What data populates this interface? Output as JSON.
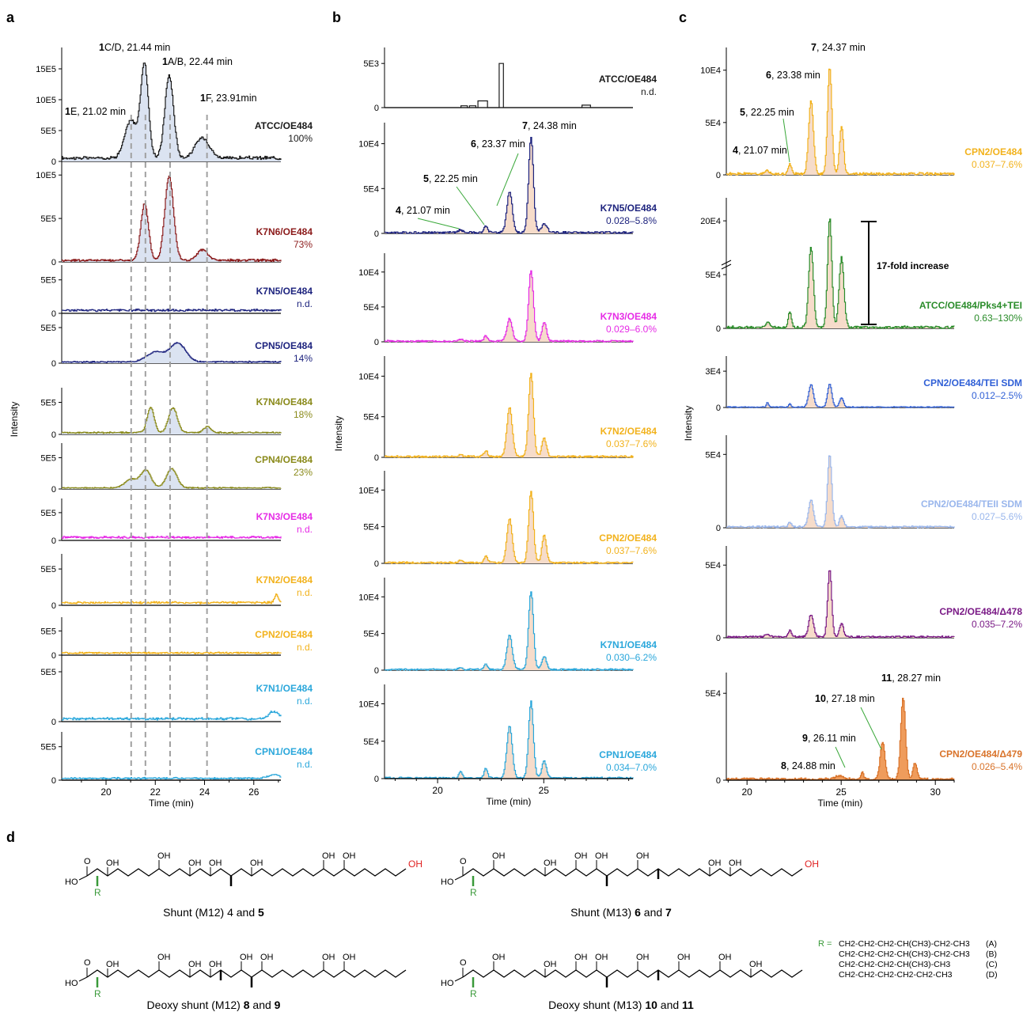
{
  "panel_labels": {
    "a": "a",
    "b": "b",
    "c": "c",
    "d": "d"
  },
  "axis": {
    "intensity": "Intensity",
    "time": "Time (min)",
    "a_ticks": [
      "20",
      "22",
      "24",
      "26"
    ],
    "b_ticks": [
      "20",
      "25"
    ],
    "c_ticks": [
      "20",
      "25",
      "30"
    ]
  },
  "colors": {
    "black": "#1a1a1a",
    "darkred": "#8b1a1a",
    "navy": "#1d237e",
    "olive": "#8a8a1a",
    "magenta": "#e62ce6",
    "gold": "#f2b21c",
    "cyan": "#2aa7db",
    "green": "#2a8c2a",
    "blue": "#2f5fd6",
    "lightblue": "#99b6ec",
    "purple": "#7a1a86",
    "orange": "#d9732a",
    "fill_blue": "#dbe3f1",
    "fill_peach": "#f6dcca",
    "fill_orange": "#ef9c5c",
    "fill_grey": "#707070"
  },
  "chart_data": [
    {
      "id": "a",
      "type": "line",
      "xlabel": "Time (min)",
      "ylabel": "Intensity",
      "xlim": [
        18.2,
        27.1
      ],
      "peak_labels": [
        {
          "bold": "1",
          "text": "C/D, 21.44 min"
        },
        {
          "bold": "1",
          "text": "A/B, 22.44 min"
        },
        {
          "bold": "1",
          "text": "E, 21.02 min"
        },
        {
          "bold": "1",
          "text": "F, 23.91min"
        }
      ],
      "traces": [
        {
          "name": "ATCC/OE484",
          "value": "100%",
          "color": "black",
          "ticks": [
            "15E5",
            "10E5",
            "5E5",
            "0"
          ],
          "ymax": 15,
          "peaks": [
            [
              21.0,
              5.5,
              0.35
            ],
            [
              21.55,
              13.5,
              0.22
            ],
            [
              22.55,
              12.0,
              0.25
            ],
            [
              23.9,
              3.0,
              0.4
            ]
          ],
          "base": 0.5
        },
        {
          "name": "K7N6/OE484",
          "value": "73%",
          "color": "darkred",
          "ticks": [
            "10E5",
            "5E5",
            "0"
          ],
          "ymax": 12,
          "peaks": [
            [
              21.55,
              7.0,
              0.22
            ],
            [
              22.55,
              10.5,
              0.25
            ],
            [
              23.9,
              1.3,
              0.3
            ]
          ],
          "base": 0.2
        },
        {
          "name": "K7N5/OE484",
          "value": "n.d.",
          "color": "navy",
          "ticks": [
            "5E5",
            "0"
          ],
          "ymax": 6,
          "peaks": [],
          "base": 0.5
        },
        {
          "name": "CPN5/OE484",
          "value": "14%",
          "color": "navy",
          "ticks": [
            "5E5",
            "0"
          ],
          "ymax": 6,
          "peaks": [
            [
              22.0,
              1.5,
              0.5
            ],
            [
              22.9,
              2.8,
              0.45
            ]
          ],
          "base": 0.2
        },
        {
          "name": "K7N4/OE484",
          "value": "18%",
          "color": "olive",
          "ticks": [
            "5E5",
            "0"
          ],
          "ymax": 6,
          "peaks": [
            [
              21.8,
              4.3,
              0.2
            ],
            [
              22.7,
              4.2,
              0.25
            ],
            [
              24.1,
              1.0,
              0.2
            ]
          ],
          "base": 0.3
        },
        {
          "name": "CPN4/OE484",
          "value": "23%",
          "color": "olive",
          "ticks": [
            "5E5",
            "0"
          ],
          "ymax": 6,
          "peaks": [
            [
              21.0,
              1.5,
              0.35
            ],
            [
              21.6,
              3.0,
              0.3
            ],
            [
              22.65,
              3.3,
              0.3
            ]
          ],
          "base": 0.2
        },
        {
          "name": "K7N3/OE484",
          "value": "n.d.",
          "color": "magenta",
          "ticks": [
            "5E5",
            "0"
          ],
          "ymax": 6,
          "peaks": [],
          "base": 0.6
        },
        {
          "name": "K7N2/OE484",
          "value": "n.d.",
          "color": "gold",
          "ticks": [
            "5E5",
            "0"
          ],
          "ymax": 6,
          "peaks": [
            [
              26.9,
              1.2,
              0.1
            ]
          ],
          "base": 0.4
        },
        {
          "name": "CPN2/OE484",
          "value": "n.d.",
          "color": "gold",
          "ticks": [
            "5E5",
            "0"
          ],
          "ymax": 6,
          "peaks": [],
          "base": 0.5
        },
        {
          "name": "K7N1/OE484",
          "value": "n.d.",
          "color": "cyan",
          "ticks": [
            "5E5",
            "0"
          ],
          "ymax": 6,
          "peaks": [
            [
              26.8,
              0.8,
              0.3
            ]
          ],
          "base": 0.3
        },
        {
          "name": "CPN1/OE484",
          "value": "n.d.",
          "color": "cyan",
          "ticks": [
            "5E5",
            "0"
          ],
          "ymax": 6,
          "peaks": [
            [
              26.8,
              0.6,
              0.3
            ]
          ],
          "base": 0.3
        }
      ]
    },
    {
      "id": "b",
      "type": "line",
      "xlabel": "Time (min)",
      "ylabel": "Intensity",
      "xlim": [
        17.5,
        29.2
      ],
      "peak_labels": [
        {
          "bold": "7",
          "text": ", 24.38 min"
        },
        {
          "bold": "6",
          "text": ", 23.37 min"
        },
        {
          "bold": "5",
          "text": ", 22.25 min"
        },
        {
          "bold": "4",
          "text": ", 21.07 min"
        }
      ],
      "traces": [
        {
          "name": "ATCC/OE484",
          "value": "n.d.",
          "color": "black",
          "ticks": [
            "5E3",
            "0"
          ],
          "ymax": 8,
          "peaks": [],
          "base": 0
        },
        {
          "name": "K7N5/OE484",
          "value": "0.028–5.8%",
          "color": "navy",
          "ticks": [
            "10E4",
            "5E4",
            "0"
          ],
          "ymax": 12,
          "peaks": [
            [
              21.07,
              0.4,
              0.12
            ],
            [
              22.25,
              0.8,
              0.12
            ],
            [
              23.37,
              5.0,
              0.18
            ],
            [
              24.38,
              11.5,
              0.16
            ],
            [
              25.0,
              1.0,
              0.2
            ]
          ],
          "base": 0.1
        },
        {
          "name": "K7N3/OE484",
          "value": "0.029–6.0%",
          "color": "magenta",
          "ticks": [
            "10E4",
            "5E4",
            "0"
          ],
          "ymax": 12,
          "peaks": [
            [
              21.07,
              0.3,
              0.12
            ],
            [
              22.25,
              0.8,
              0.12
            ],
            [
              23.37,
              3.5,
              0.18
            ],
            [
              24.38,
              11.0,
              0.16
            ],
            [
              25.0,
              3.0,
              0.15
            ]
          ],
          "base": 0.1
        },
        {
          "name": "K7N2/OE484",
          "value": "0.037–7.6%",
          "color": "gold",
          "ticks": [
            "10E4",
            "5E4",
            "0"
          ],
          "ymax": 12,
          "peaks": [
            [
              21.07,
              0.3,
              0.12
            ],
            [
              22.25,
              0.8,
              0.12
            ],
            [
              23.37,
              6.5,
              0.18
            ],
            [
              24.38,
              11.0,
              0.16
            ],
            [
              25.0,
              2.5,
              0.15
            ]
          ],
          "base": 0.1
        },
        {
          "name": "CPN2/OE484",
          "value": "0.037–7.6%",
          "color": "gold",
          "ticks": [
            "10E4",
            "5E4",
            "0"
          ],
          "ymax": 12,
          "peaks": [
            [
              21.07,
              0.4,
              0.12
            ],
            [
              22.25,
              1.0,
              0.12
            ],
            [
              23.37,
              6.5,
              0.18
            ],
            [
              24.38,
              10.5,
              0.16
            ],
            [
              25.0,
              4.0,
              0.15
            ]
          ],
          "base": 0.1
        },
        {
          "name": "K7N1/OE484",
          "value": "0.030–6.2%",
          "color": "cyan",
          "ticks": [
            "10E4",
            "5E4",
            "0"
          ],
          "ymax": 12,
          "peaks": [
            [
              21.07,
              0.3,
              0.12
            ],
            [
              22.25,
              0.8,
              0.12
            ],
            [
              23.37,
              5.0,
              0.18
            ],
            [
              24.38,
              11.5,
              0.16
            ],
            [
              25.0,
              2.0,
              0.15
            ]
          ],
          "base": 0.1
        },
        {
          "name": "CPN1/OE484",
          "value": "0.034–7.0%",
          "color": "cyan",
          "ticks": [
            "10E4",
            "5E4",
            "0"
          ],
          "ymax": 12,
          "peaks": [
            [
              21.07,
              1.0,
              0.1
            ],
            [
              22.25,
              1.3,
              0.12
            ],
            [
              23.37,
              7.5,
              0.18
            ],
            [
              24.38,
              11.0,
              0.16
            ],
            [
              25.0,
              2.5,
              0.15
            ]
          ],
          "base": 0.1
        }
      ]
    },
    {
      "id": "c",
      "type": "line",
      "xlabel": "Time (min)",
      "ylabel": "Intensity",
      "xlim": [
        18.9,
        31.0
      ],
      "peak_labels": [
        {
          "bold": "7",
          "text": ", 24.37 min"
        },
        {
          "bold": "6",
          "text": ", 23.38 min"
        },
        {
          "bold": "5",
          "text": ", 22.25 min"
        },
        {
          "bold": "4",
          "text": ", 21.07 min"
        },
        {
          "bold": "11",
          "text": ", 28.27 min"
        },
        {
          "bold": "10",
          "text": ", 27.18 min"
        },
        {
          "bold": "9",
          "text": ", 26.11 min"
        },
        {
          "bold": "8",
          "text": ", 24.88 min"
        }
      ],
      "annotation": "17-fold increase",
      "traces": [
        {
          "name": "CPN2/OE484",
          "value": "0.037–7.6%",
          "color": "gold",
          "ticks": [
            "10E4",
            "5E4",
            "0"
          ],
          "ymax": 12,
          "peaks": [
            [
              21.07,
              0.4,
              0.12
            ],
            [
              22.25,
              1.0,
              0.12
            ],
            [
              23.38,
              7.5,
              0.18
            ],
            [
              24.37,
              11.0,
              0.16
            ],
            [
              25.0,
              5.0,
              0.15
            ]
          ],
          "base": 0.1
        },
        {
          "name": "ATCC/OE484/Pks4+TEI",
          "value": "0.63–130%",
          "color": "green",
          "ticks": [
            "20E4",
            "5E4",
            "0"
          ],
          "ymax": 12,
          "peaks": [
            [
              21.07,
              0.6,
              0.12
            ],
            [
              22.25,
              1.5,
              0.12
            ],
            [
              23.38,
              8.0,
              0.18
            ],
            [
              24.37,
              11.0,
              0.16
            ],
            [
              25.0,
              7.0,
              0.18
            ]
          ],
          "base": 0.1
        },
        {
          "name": "CPN2/OE484/TEI SDM",
          "value": "0.012–2.5%",
          "color": "blue",
          "ticks": [
            "3E4",
            "0"
          ],
          "ymax": 4.5,
          "peaks": [
            [
              21.07,
              0.5,
              0.08
            ],
            [
              22.25,
              0.4,
              0.08
            ],
            [
              23.38,
              2.5,
              0.18
            ],
            [
              24.37,
              2.6,
              0.16
            ],
            [
              25.0,
              1.0,
              0.15
            ]
          ],
          "base": 0.05
        },
        {
          "name": "CPN2/OE484/TEII SDM",
          "value": "0.027–5.6%",
          "color": "lightblue",
          "ticks": [
            "5E4",
            "0"
          ],
          "ymax": 9,
          "peaks": [
            [
              22.25,
              0.6,
              0.1
            ],
            [
              23.38,
              3.0,
              0.18
            ],
            [
              24.37,
              8.0,
              0.16
            ],
            [
              25.0,
              1.2,
              0.15
            ]
          ],
          "base": 0.1
        },
        {
          "name": "CPN2/OE484/Δ478",
          "value": "0.035–7.2%",
          "color": "purple",
          "ticks": [
            "5E4",
            "0"
          ],
          "ymax": 9,
          "peaks": [
            [
              21.07,
              0.3,
              0.15
            ],
            [
              22.25,
              0.7,
              0.12
            ],
            [
              23.38,
              2.5,
              0.18
            ],
            [
              24.37,
              7.5,
              0.15
            ],
            [
              25.0,
              1.5,
              0.15
            ]
          ],
          "base": 0.1
        },
        {
          "name": "CPN2/OE484/Δ479",
          "value": "0.026–5.4%",
          "color": "orange",
          "ticks": [
            "5E4",
            "0"
          ],
          "ymax": 9,
          "peaks": [
            [
              24.88,
              0.3,
              0.3
            ],
            [
              26.11,
              0.7,
              0.1
            ],
            [
              27.18,
              3.5,
              0.18
            ],
            [
              28.27,
              7.5,
              0.18
            ],
            [
              28.9,
              1.5,
              0.15
            ]
          ],
          "base": 0.1
        }
      ]
    }
  ],
  "structures": [
    {
      "caption_plain": "Shunt (M12) 4 and ",
      "caption_bold": "5"
    },
    {
      "caption_plain": "Shunt (M13) ",
      "caption_bold": "6",
      "caption_mid": " and ",
      "caption_bold2": "7"
    },
    {
      "caption_plain": "Deoxy shunt (M12) ",
      "caption_bold": "8",
      "caption_mid": " and ",
      "caption_bold2": "9"
    },
    {
      "caption_plain": "Deoxy shunt (M13) ",
      "caption_bold": "10",
      "caption_mid": " and ",
      "caption_bold2": "11"
    }
  ],
  "atoms": {
    "O": "O",
    "OH": "OH",
    "HO": "HO",
    "R": "R"
  },
  "r_groups": {
    "prefix": "R =",
    "rows": [
      {
        "formula": "CH2-CH2-CH2-CH(CH3)-CH2-CH3",
        "tag": "(A)"
      },
      {
        "formula": "CH2-CH2-CH2-CH(CH3)-CH2-CH3",
        "tag": "(B)"
      },
      {
        "formula": "CH2-CH2-CH2-CH(CH3)-CH3",
        "tag": "(C)"
      },
      {
        "formula": "CH2-CH2-CH2-CH2-CH2-CH3",
        "tag": "(D)"
      }
    ]
  }
}
